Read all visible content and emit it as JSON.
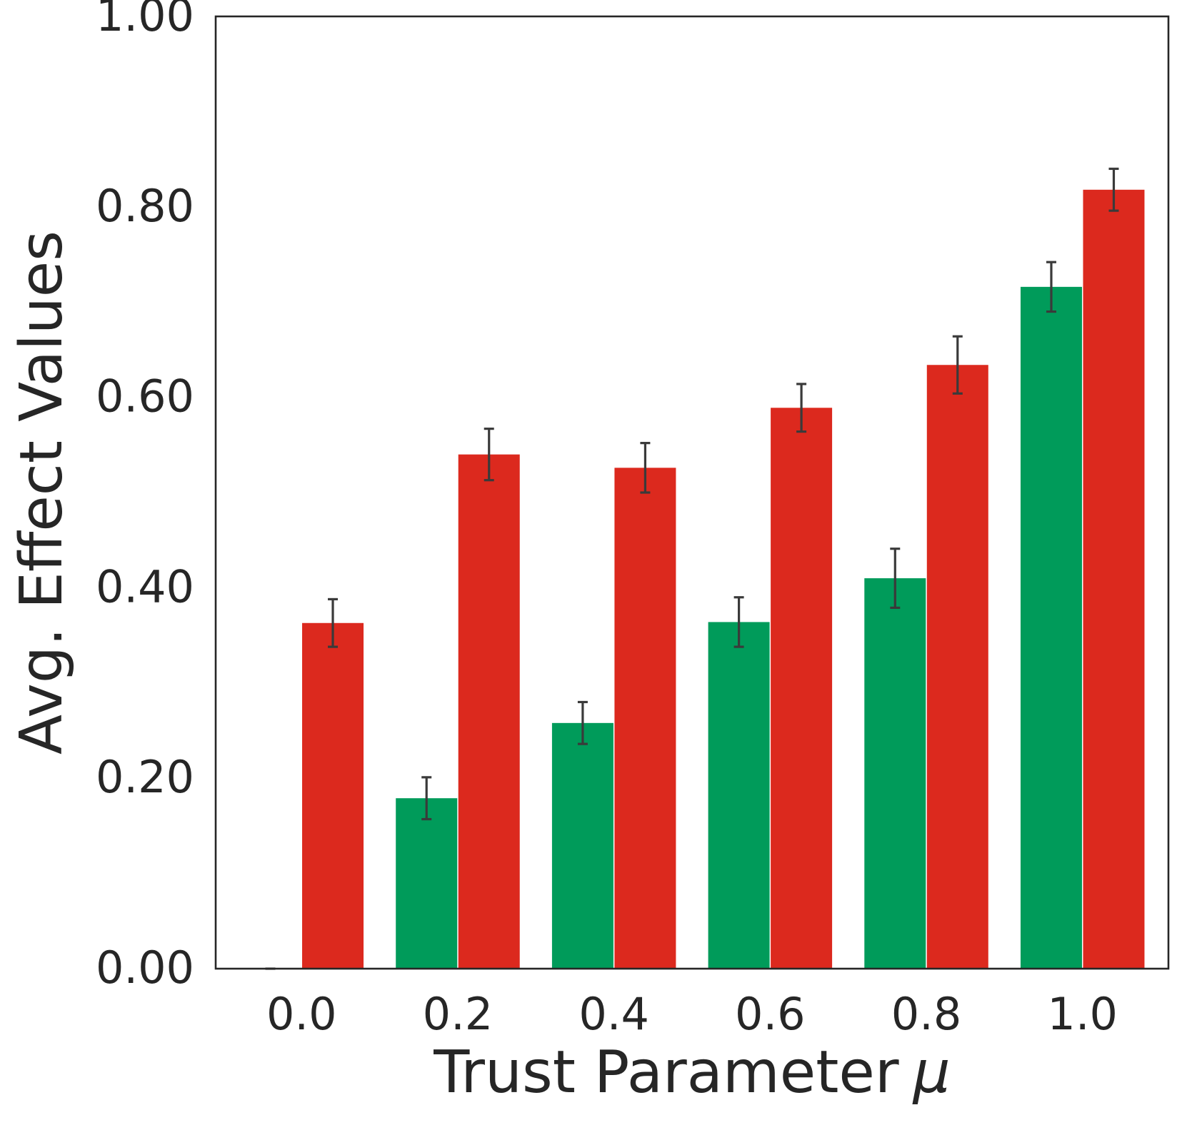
{
  "chart_data": {
    "type": "bar",
    "title": "",
    "xlabel": "Trust Parameter",
    "xlabel_symbol": "μ",
    "ylabel": "Avg. Effect Values",
    "categories": [
      "0.0",
      "0.2",
      "0.4",
      "0.6",
      "0.8",
      "1.0"
    ],
    "ylim": [
      0,
      1.0
    ],
    "yticks": [
      "0.00",
      "0.20",
      "0.40",
      "0.60",
      "0.80",
      "1.00"
    ],
    "grid": false,
    "legend": "none",
    "series": [
      {
        "color": "#009b5a",
        "values": [
          0.0,
          0.179,
          0.258,
          0.364,
          0.41,
          0.716
        ],
        "error": [
          0.0,
          0.022,
          0.022,
          0.026,
          0.031,
          0.026
        ]
      },
      {
        "color": "#dc291e",
        "values": [
          0.363,
          0.54,
          0.526,
          0.589,
          0.634,
          0.818
        ],
        "error": [
          0.025,
          0.027,
          0.026,
          0.025,
          0.03,
          0.022
        ]
      }
    ],
    "error_bar_color": "#3a3a3a",
    "axis_color": "#262626"
  }
}
